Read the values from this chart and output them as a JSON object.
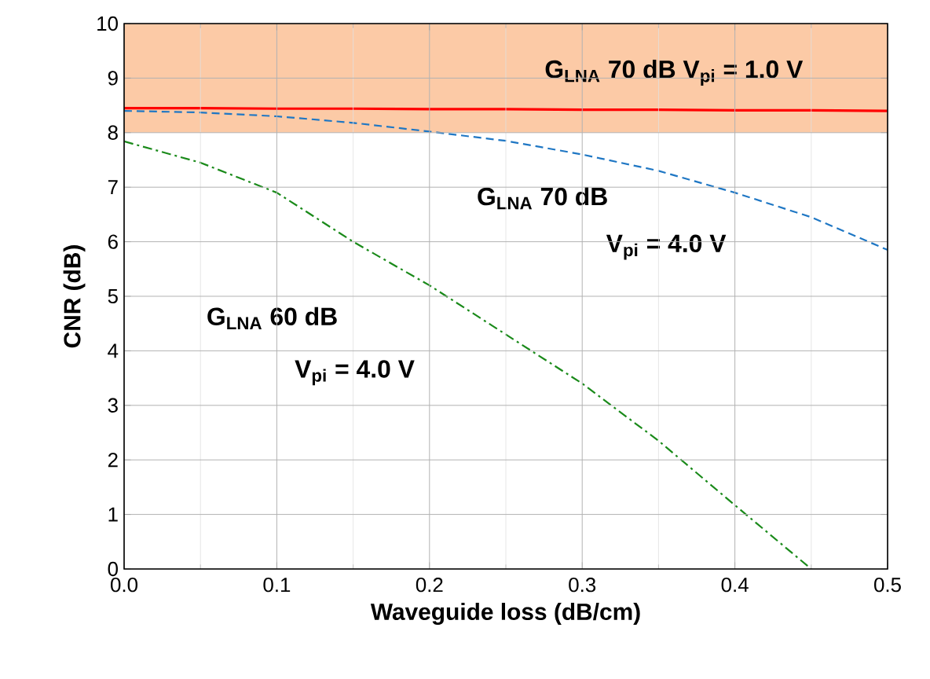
{
  "chart_data": {
    "type": "line",
    "xlabel": "Waveguide loss (dB/cm)",
    "ylabel": "CNR (dB)",
    "xlim": [
      0,
      0.5
    ],
    "ylim": [
      0,
      10
    ],
    "xticks": [
      {
        "value": 0,
        "label": "0.0"
      },
      0.1,
      0.2,
      0.3,
      0.4,
      0.5
    ],
    "yticks": [
      0,
      1,
      2,
      3,
      4,
      5,
      6,
      7,
      8,
      9,
      10
    ],
    "grid": true,
    "x": [
      0,
      0.05,
      0.1,
      0.15,
      0.2,
      0.25,
      0.3,
      0.35,
      0.4,
      0.45,
      0.5
    ],
    "series": [
      {
        "color": "#ff0000",
        "line_style": "solid",
        "values": [
          8.45,
          8.45,
          8.44,
          8.44,
          8.43,
          8.43,
          8.42,
          8.42,
          8.41,
          8.41,
          8.4
        ]
      },
      {
        "color": "#1f77c4",
        "line_style": "dashed",
        "values": [
          8.4,
          8.37,
          8.3,
          8.18,
          8.02,
          7.85,
          7.6,
          7.3,
          6.9,
          6.45,
          5.85
        ]
      },
      {
        "color": "#1a8a1a",
        "line_style": "dashdot",
        "x": [
          0,
          0.05,
          0.1,
          0.15,
          0.2,
          0.25,
          0.3,
          0.35,
          0.4,
          0.45
        ],
        "values": [
          7.84,
          7.45,
          6.9,
          6.0,
          5.2,
          4.3,
          3.4,
          2.35,
          1.17,
          0
        ]
      }
    ],
    "bands": [
      {
        "axis": "y",
        "from": 8,
        "to": 10,
        "color": "#fccaa6"
      }
    ],
    "annotations": [
      "G$_{LNA}$ 70 dB  V$_{pi}$ = 1.0 V",
      "G$_{LNA}$ 70 dB",
      "V$_{pi}$ = 4.0 V",
      "G$_{LNA}$ 60 dB",
      "V$_{pi}$ = 4.0 V"
    ]
  }
}
